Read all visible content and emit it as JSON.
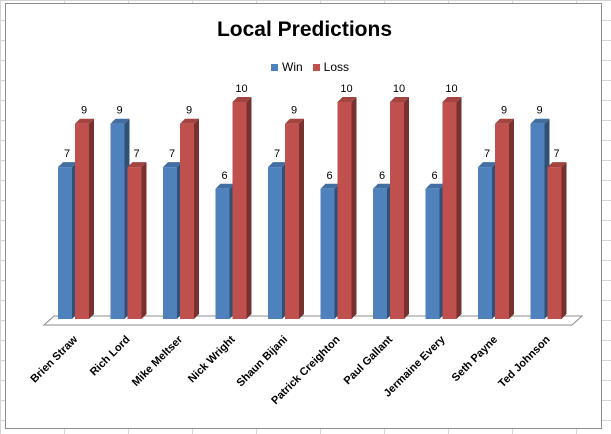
{
  "chart_data": {
    "type": "bar",
    "title": "Local Predictions",
    "categories": [
      "Brien Straw",
      "Rich Lord",
      "Mike Meltser",
      "Nick Wright",
      "Shaun Bijani",
      "Patrick Creighton",
      "Paul Gallant",
      "Jermaine Every",
      "Seth Payne",
      "Ted Johnson"
    ],
    "series": [
      {
        "name": "Win",
        "values": [
          7,
          9,
          7,
          6,
          7,
          6,
          6,
          6,
          7,
          9
        ],
        "color": "#4f81bd"
      },
      {
        "name": "Loss",
        "values": [
          9,
          7,
          9,
          10,
          9,
          10,
          10,
          10,
          9,
          7
        ],
        "color": "#c0504d"
      }
    ],
    "ylim": [
      0,
      10
    ],
    "grid": false,
    "legend_position": "top",
    "data_labels": true
  }
}
